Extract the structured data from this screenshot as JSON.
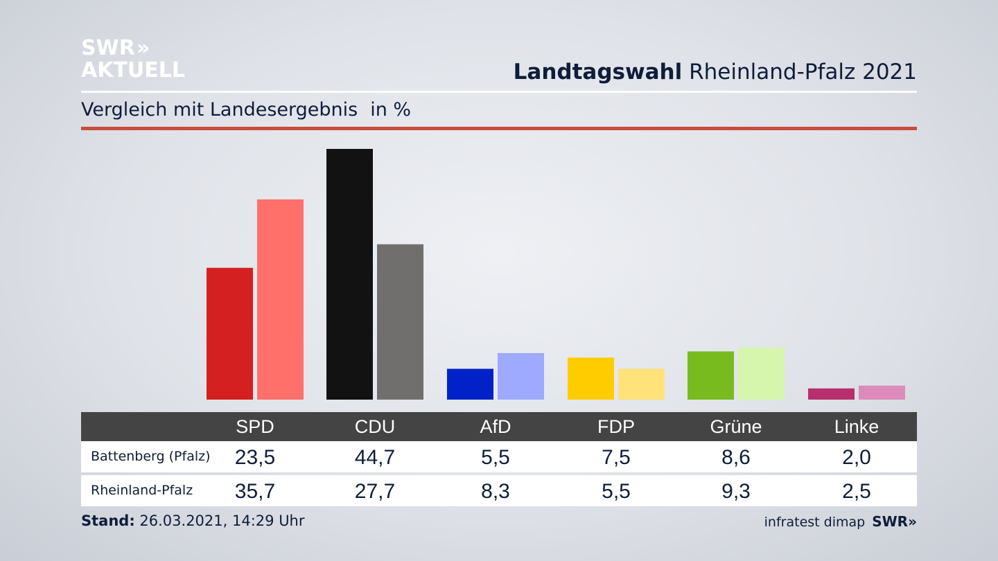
{
  "logo": {
    "line1": "SWR",
    "line2": "AKTUELL",
    "arrows": "»"
  },
  "header": {
    "title_bold": "Landtagswahl",
    "title_rest": "Rheinland-Pfalz 2021"
  },
  "subtitle": {
    "text": "Vergleich mit Landesergebnis",
    "unit": "in %"
  },
  "chart_data": {
    "type": "bar",
    "categories": [
      "SPD",
      "CDU",
      "AfD",
      "FDP",
      "Grüne",
      "Linke"
    ],
    "series": [
      {
        "name": "Battenberg (Pfalz)",
        "values": [
          23.5,
          44.7,
          5.5,
          7.5,
          8.6,
          2.0
        ],
        "colors": [
          "#d42020",
          "#121212",
          "#0022c8",
          "#ffcc00",
          "#78bb1e",
          "#b82f6e"
        ]
      },
      {
        "name": "Rheinland-Pfalz",
        "values": [
          35.7,
          27.7,
          8.3,
          5.5,
          9.3,
          2.5
        ],
        "colors": [
          "#ff706a",
          "#716f6d",
          "#9daaff",
          "#ffe27a",
          "#d6f5ad",
          "#dd8bbb"
        ]
      }
    ],
    "ylim": [
      0,
      44.7
    ],
    "grid": false
  },
  "table": {
    "headers": [
      "SPD",
      "CDU",
      "AfD",
      "FDP",
      "Grüne",
      "Linke"
    ],
    "rows": [
      {
        "label": "Battenberg (Pfalz)",
        "values": [
          "23,5",
          "44,7",
          "5,5",
          "7,5",
          "8,6",
          "2,0"
        ]
      },
      {
        "label": "Rheinland-Pfalz",
        "values": [
          "35,7",
          "27,7",
          "8,3",
          "5,5",
          "9,3",
          "2,5"
        ]
      }
    ]
  },
  "footer": {
    "stand_label": "Stand:",
    "stand_value": "26.03.2021, 14:29 Uhr",
    "source": "infratest dimap",
    "source_logo": "SWR»"
  }
}
